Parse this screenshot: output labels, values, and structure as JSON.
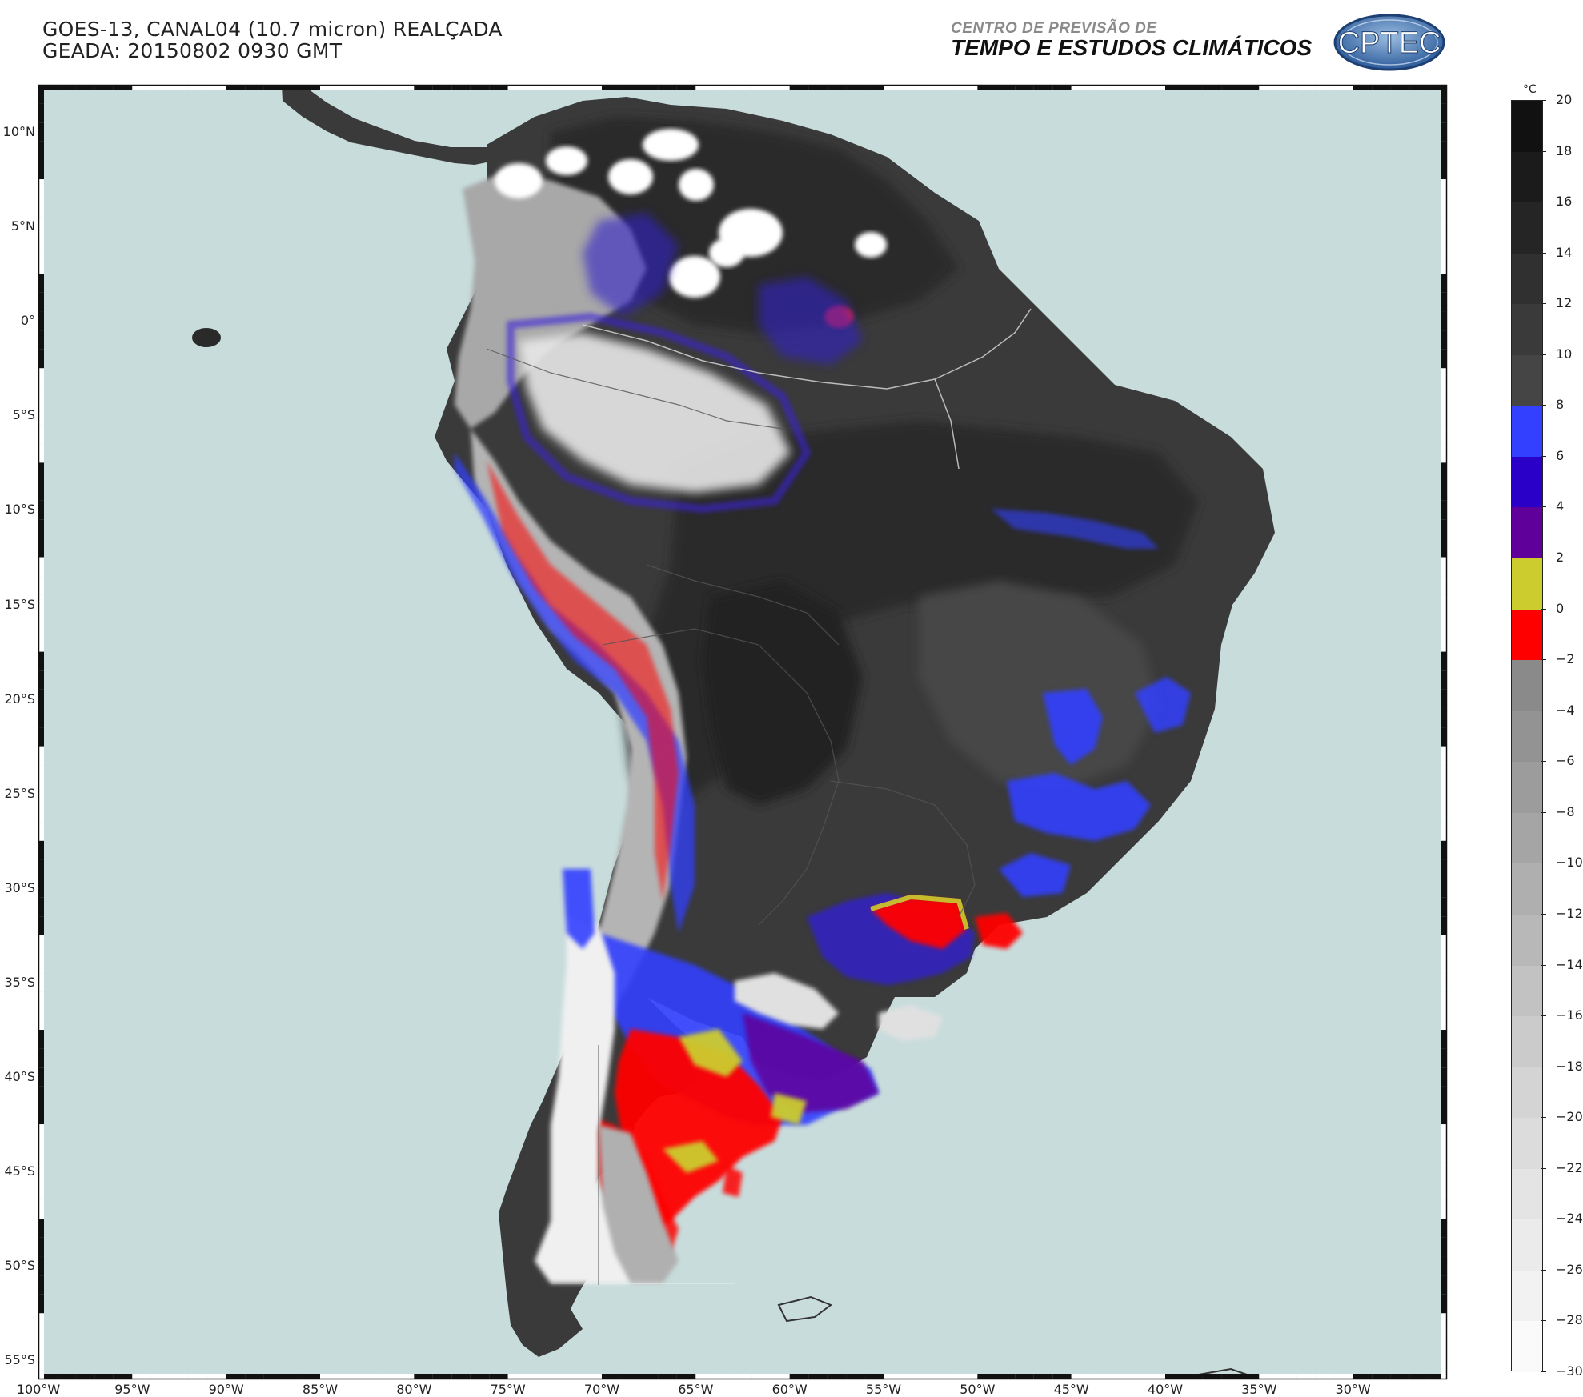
{
  "header": {
    "title_line1": "GOES-13, CANAL04 (10.7 micron) REALÇADA",
    "title_line2": "GEADA: 20150802 0930 GMT"
  },
  "organization": {
    "line1": "CENTRO DE PREVISÃO DE",
    "line2": "TEMPO E ESTUDOS CLIMÁTICOS",
    "logo_text": "CPTEC"
  },
  "map": {
    "projection_extent": {
      "lon_min": -100,
      "lon_max": -25,
      "lat_min": -56,
      "lat_max": 12.5
    },
    "ocean_color": "#c8dcdc",
    "land_color": "#3a3a3a",
    "lat_labels": [
      "10°N",
      "5°N",
      "0°",
      "5°S",
      "10°S",
      "15°S",
      "20°S",
      "25°S",
      "30°S",
      "35°S",
      "40°S",
      "45°S",
      "50°S",
      "55°S"
    ],
    "lat_values": [
      10,
      5,
      0,
      -5,
      -10,
      -15,
      -20,
      -25,
      -30,
      -35,
      -40,
      -45,
      -50,
      -55
    ],
    "lon_labels": [
      "100°W",
      "95°W",
      "90°W",
      "85°W",
      "80°W",
      "75°W",
      "70°W",
      "65°W",
      "60°W",
      "55°W",
      "50°W",
      "45°W",
      "40°W",
      "35°W",
      "30°W"
    ],
    "lon_values": [
      -100,
      -95,
      -90,
      -85,
      -80,
      -75,
      -70,
      -65,
      -60,
      -55,
      -50,
      -45,
      -40,
      -35,
      -30
    ]
  },
  "colorbar": {
    "unit": "°C",
    "labels": [
      "20",
      "18",
      "16",
      "14",
      "12",
      "10",
      "8",
      "6",
      "4",
      "2",
      "0",
      "−2",
      "−4",
      "−6",
      "−8",
      "−10",
      "−12",
      "−14",
      "−16",
      "−18",
      "−20",
      "−22",
      "−24",
      "−26",
      "−28",
      "−30"
    ],
    "segments": [
      {
        "from": 20,
        "to": 18,
        "color": "#111111"
      },
      {
        "from": 18,
        "to": 16,
        "color": "#1b1b1b"
      },
      {
        "from": 16,
        "to": 14,
        "color": "#252525"
      },
      {
        "from": 14,
        "to": 12,
        "color": "#303030"
      },
      {
        "from": 12,
        "to": 10,
        "color": "#3a3a3a"
      },
      {
        "from": 10,
        "to": 8,
        "color": "#454545"
      },
      {
        "from": 8,
        "to": 6,
        "color": "#3340ff"
      },
      {
        "from": 6,
        "to": 4,
        "color": "#2a00c8"
      },
      {
        "from": 4,
        "to": 2,
        "color": "#60009a"
      },
      {
        "from": 2,
        "to": 0,
        "color": "#cccc2e"
      },
      {
        "from": 0,
        "to": -2,
        "color": "#ff0000"
      },
      {
        "from": -2,
        "to": -4,
        "color": "#8a8a8a"
      },
      {
        "from": -4,
        "to": -6,
        "color": "#939393"
      },
      {
        "from": -6,
        "to": -8,
        "color": "#9c9c9c"
      },
      {
        "from": -8,
        "to": -10,
        "color": "#a5a5a5"
      },
      {
        "from": -10,
        "to": -12,
        "color": "#afafaf"
      },
      {
        "from": -12,
        "to": -14,
        "color": "#b8b8b8"
      },
      {
        "from": -14,
        "to": -16,
        "color": "#c2c2c2"
      },
      {
        "from": -16,
        "to": -18,
        "color": "#cbcbcb"
      },
      {
        "from": -18,
        "to": -20,
        "color": "#d4d4d4"
      },
      {
        "from": -20,
        "to": -22,
        "color": "#dcdcdc"
      },
      {
        "from": -22,
        "to": -24,
        "color": "#e4e4e4"
      },
      {
        "from": -24,
        "to": -26,
        "color": "#ebebeb"
      },
      {
        "from": -26,
        "to": -28,
        "color": "#f2f2f2"
      },
      {
        "from": -28,
        "to": -30,
        "color": "#fafafa"
      }
    ]
  }
}
